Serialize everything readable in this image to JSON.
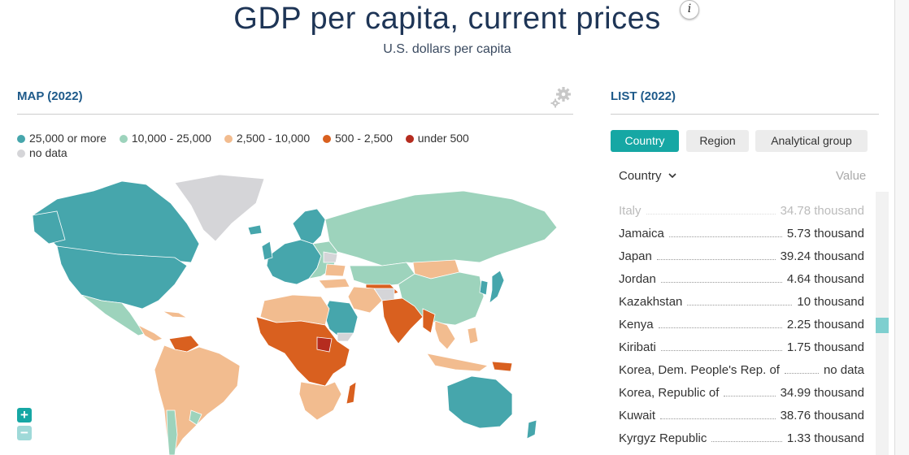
{
  "header": {
    "title": "GDP per capita, current prices",
    "info_glyph": "i",
    "subtitle": "U.S. dollars per capita"
  },
  "map_panel": {
    "heading": "MAP (2022)",
    "legend": [
      {
        "label": "25,000 or more",
        "color": "#46a6ac"
      },
      {
        "label": "10,000 - 25,000",
        "color": "#9dd3bc"
      },
      {
        "label": "2,500 - 10,000",
        "color": "#f2bc8f"
      },
      {
        "label": "500 - 2,500",
        "color": "#d9601f"
      },
      {
        "label": "under 500",
        "color": "#b52c1f"
      },
      {
        "label": "no data",
        "color": "#d5d5d8"
      }
    ],
    "zoom_in": "+",
    "zoom_out": "−"
  },
  "list_panel": {
    "heading": "LIST (2022)",
    "tabs": [
      {
        "label": "Country",
        "active": true
      },
      {
        "label": "Region",
        "active": false
      },
      {
        "label": "Analytical group",
        "active": false
      }
    ],
    "sort_label": "Country",
    "value_header": "Value",
    "rows": [
      {
        "name": "Italy",
        "value": "34.78 thousand"
      },
      {
        "name": "Jamaica",
        "value": "5.73 thousand"
      },
      {
        "name": "Japan",
        "value": "39.24 thousand"
      },
      {
        "name": "Jordan",
        "value": "4.64 thousand"
      },
      {
        "name": "Kazakhstan",
        "value": "10 thousand"
      },
      {
        "name": "Kenya",
        "value": "2.25 thousand"
      },
      {
        "name": "Kiribati",
        "value": "1.75 thousand"
      },
      {
        "name": "Korea, Dem. People's Rep. of",
        "value": "no data"
      },
      {
        "name": "Korea, Republic of",
        "value": "34.99 thousand"
      },
      {
        "name": "Kuwait",
        "value": "38.76 thousand"
      },
      {
        "name": "Kyrgyz Republic",
        "value": "1.33 thousand"
      }
    ]
  },
  "icons": {
    "gear": "gear-icon",
    "chevron": "chevron-down-icon",
    "info": "info-icon"
  }
}
